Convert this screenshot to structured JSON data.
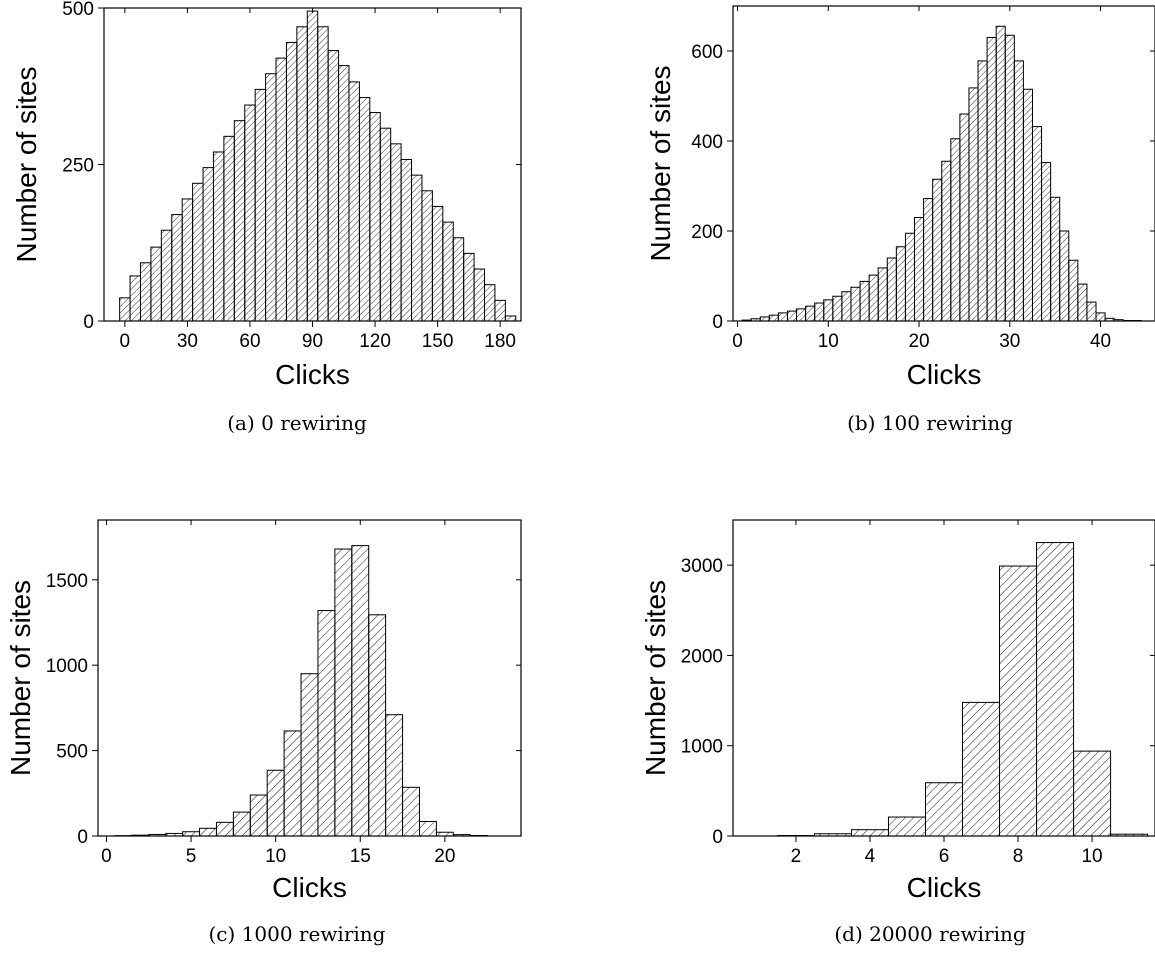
{
  "figure": {
    "panels": [
      {
        "caption": "(a) 0 rewiring"
      },
      {
        "caption": "(b) 100 rewiring"
      },
      {
        "caption": "(c) 1000 rewiring"
      },
      {
        "caption": "(d) 20000 rewiring"
      }
    ]
  },
  "colors": {
    "bar_fill": "#ffffff",
    "bar_stroke": "#000000",
    "hatch": "#000000"
  },
  "chart_data": [
    {
      "type": "bar",
      "title": "",
      "xlabel": "Clicks",
      "ylabel": "Number of sites",
      "xlim": [
        -10,
        190
      ],
      "ylim": [
        0,
        500
      ],
      "xticks": [
        0,
        30,
        60,
        90,
        120,
        150,
        180
      ],
      "yticks": [
        0,
        250,
        500
      ],
      "bin_width": 5,
      "bins": [
        {
          "x": 0,
          "value": 37
        },
        {
          "x": 5,
          "value": 72
        },
        {
          "x": 10,
          "value": 93
        },
        {
          "x": 15,
          "value": 118
        },
        {
          "x": 20,
          "value": 145
        },
        {
          "x": 25,
          "value": 170
        },
        {
          "x": 30,
          "value": 195
        },
        {
          "x": 35,
          "value": 220
        },
        {
          "x": 40,
          "value": 245
        },
        {
          "x": 45,
          "value": 270
        },
        {
          "x": 50,
          "value": 295
        },
        {
          "x": 55,
          "value": 320
        },
        {
          "x": 60,
          "value": 345
        },
        {
          "x": 65,
          "value": 370
        },
        {
          "x": 70,
          "value": 395
        },
        {
          "x": 75,
          "value": 420
        },
        {
          "x": 80,
          "value": 445
        },
        {
          "x": 85,
          "value": 470
        },
        {
          "x": 90,
          "value": 495
        },
        {
          "x": 95,
          "value": 470
        },
        {
          "x": 100,
          "value": 432
        },
        {
          "x": 105,
          "value": 408
        },
        {
          "x": 110,
          "value": 382
        },
        {
          "x": 115,
          "value": 357
        },
        {
          "x": 120,
          "value": 333
        },
        {
          "x": 125,
          "value": 308
        },
        {
          "x": 130,
          "value": 283
        },
        {
          "x": 135,
          "value": 258
        },
        {
          "x": 140,
          "value": 233
        },
        {
          "x": 145,
          "value": 208
        },
        {
          "x": 150,
          "value": 183
        },
        {
          "x": 155,
          "value": 158
        },
        {
          "x": 160,
          "value": 133
        },
        {
          "x": 165,
          "value": 108
        },
        {
          "x": 170,
          "value": 83
        },
        {
          "x": 175,
          "value": 58
        },
        {
          "x": 180,
          "value": 33
        },
        {
          "x": 185,
          "value": 8
        }
      ]
    },
    {
      "type": "bar",
      "title": "",
      "xlabel": "Clicks",
      "ylabel": "Number of sites",
      "xlim": [
        -0.5,
        46
      ],
      "ylim": [
        0,
        700
      ],
      "xticks": [
        0,
        10,
        20,
        30,
        40
      ],
      "yticks": [
        0,
        200,
        400,
        600
      ],
      "bin_width": 1,
      "bins": [
        {
          "x": 1,
          "value": 2
        },
        {
          "x": 2,
          "value": 5
        },
        {
          "x": 3,
          "value": 9
        },
        {
          "x": 4,
          "value": 13
        },
        {
          "x": 5,
          "value": 18
        },
        {
          "x": 6,
          "value": 22
        },
        {
          "x": 7,
          "value": 27
        },
        {
          "x": 8,
          "value": 33
        },
        {
          "x": 9,
          "value": 40
        },
        {
          "x": 10,
          "value": 47
        },
        {
          "x": 11,
          "value": 55
        },
        {
          "x": 12,
          "value": 65
        },
        {
          "x": 13,
          "value": 75
        },
        {
          "x": 14,
          "value": 88
        },
        {
          "x": 15,
          "value": 102
        },
        {
          "x": 16,
          "value": 118
        },
        {
          "x": 17,
          "value": 140
        },
        {
          "x": 18,
          "value": 165
        },
        {
          "x": 19,
          "value": 195
        },
        {
          "x": 20,
          "value": 230
        },
        {
          "x": 21,
          "value": 272
        },
        {
          "x": 22,
          "value": 315
        },
        {
          "x": 23,
          "value": 355
        },
        {
          "x": 24,
          "value": 405
        },
        {
          "x": 25,
          "value": 460
        },
        {
          "x": 26,
          "value": 518
        },
        {
          "x": 27,
          "value": 578
        },
        {
          "x": 28,
          "value": 630
        },
        {
          "x": 29,
          "value": 655
        },
        {
          "x": 30,
          "value": 635
        },
        {
          "x": 31,
          "value": 578
        },
        {
          "x": 32,
          "value": 515
        },
        {
          "x": 33,
          "value": 432
        },
        {
          "x": 34,
          "value": 352
        },
        {
          "x": 35,
          "value": 275
        },
        {
          "x": 36,
          "value": 200
        },
        {
          "x": 37,
          "value": 135
        },
        {
          "x": 38,
          "value": 82
        },
        {
          "x": 39,
          "value": 42
        },
        {
          "x": 40,
          "value": 18
        },
        {
          "x": 41,
          "value": 6
        },
        {
          "x": 42,
          "value": 3
        },
        {
          "x": 43,
          "value": 1
        },
        {
          "x": 44,
          "value": 1
        }
      ]
    },
    {
      "type": "bar",
      "title": "",
      "xlabel": "Clicks",
      "ylabel": "Number of sites",
      "xlim": [
        -0.5,
        24.5
      ],
      "ylim": [
        0,
        1850
      ],
      "xticks": [
        0,
        5,
        10,
        15,
        20
      ],
      "yticks": [
        0,
        500,
        1000,
        1500
      ],
      "bin_width": 1,
      "bins": [
        {
          "x": 1,
          "value": 2
        },
        {
          "x": 2,
          "value": 5
        },
        {
          "x": 3,
          "value": 9
        },
        {
          "x": 4,
          "value": 15
        },
        {
          "x": 5,
          "value": 25
        },
        {
          "x": 6,
          "value": 45
        },
        {
          "x": 7,
          "value": 80
        },
        {
          "x": 8,
          "value": 140
        },
        {
          "x": 9,
          "value": 240
        },
        {
          "x": 10,
          "value": 385
        },
        {
          "x": 11,
          "value": 615
        },
        {
          "x": 12,
          "value": 950
        },
        {
          "x": 13,
          "value": 1320
        },
        {
          "x": 14,
          "value": 1680
        },
        {
          "x": 15,
          "value": 1700
        },
        {
          "x": 16,
          "value": 1295
        },
        {
          "x": 17,
          "value": 710
        },
        {
          "x": 18,
          "value": 285
        },
        {
          "x": 19,
          "value": 85
        },
        {
          "x": 20,
          "value": 22
        },
        {
          "x": 21,
          "value": 8
        },
        {
          "x": 22,
          "value": 3
        }
      ]
    },
    {
      "type": "bar",
      "title": "",
      "xlabel": "Clicks",
      "ylabel": "Number of sites",
      "xlim": [
        0.3,
        11.7
      ],
      "ylim": [
        0,
        3500
      ],
      "xticks": [
        2,
        4,
        6,
        8,
        10
      ],
      "yticks": [
        0,
        1000,
        2000,
        3000
      ],
      "bin_width": 1,
      "bins": [
        {
          "x": 2,
          "value": 5
        },
        {
          "x": 3,
          "value": 25
        },
        {
          "x": 4,
          "value": 70
        },
        {
          "x": 5,
          "value": 210
        },
        {
          "x": 6,
          "value": 590
        },
        {
          "x": 7,
          "value": 1480
        },
        {
          "x": 8,
          "value": 2990
        },
        {
          "x": 9,
          "value": 3250
        },
        {
          "x": 10,
          "value": 940
        },
        {
          "x": 11,
          "value": 20
        }
      ]
    }
  ]
}
